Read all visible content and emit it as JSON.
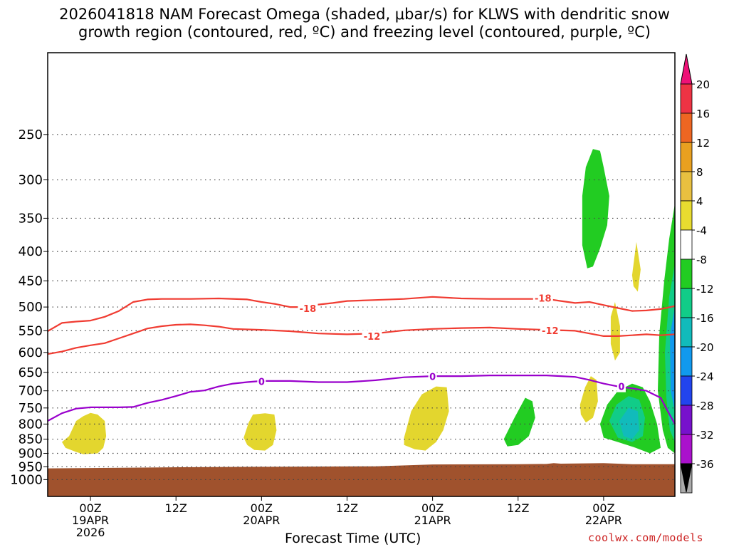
{
  "title_line1": "2026041818 NAM Forecast Omega (shaded, μbar/s) for KLWS with dendritic snow",
  "title_line2": "growth region (contoured, red, ºC) and freezing level (contoured, purple, ºC)",
  "xlabel": "Forecast Time (UTC)",
  "credit": "coolwx.com/models",
  "chart_data": {
    "type": "time-height",
    "x_range_hours": [
      -6,
      82
    ],
    "y_scale": "log-pressure",
    "y_range_hPa": [
      180,
      1070
    ],
    "y_ticks": [
      250,
      300,
      350,
      400,
      450,
      500,
      550,
      600,
      650,
      700,
      750,
      800,
      850,
      900,
      950,
      1000
    ],
    "y_tick_labels": [
      "250",
      "300",
      "350",
      "400",
      "450",
      "500",
      "550",
      "600",
      "650",
      "700",
      "750",
      "800",
      "850",
      "900",
      "950",
      "1000"
    ],
    "grid": true,
    "x_ticks": [
      {
        "h": 0,
        "lines": [
          "00Z",
          "19APR",
          "2026"
        ]
      },
      {
        "h": 12,
        "lines": [
          "12Z"
        ]
      },
      {
        "h": 24,
        "lines": [
          "00Z",
          "20APR"
        ]
      },
      {
        "h": 36,
        "lines": [
          "12Z"
        ]
      },
      {
        "h": 48,
        "lines": [
          "00Z",
          "21APR"
        ]
      },
      {
        "h": 60,
        "lines": [
          "12Z"
        ]
      },
      {
        "h": 72,
        "lines": [
          "00Z",
          "22APR"
        ]
      }
    ],
    "colors": {
      "snow_growth": "#f03c32",
      "freezing": "#9900cc",
      "ground": "#a0522d",
      "grid": "#444444"
    },
    "colorbar": {
      "labels": [
        "20",
        "16",
        "12",
        "8",
        "4",
        "-4",
        "-8",
        "-12",
        "-16",
        "-20",
        "-24",
        "-28",
        "-32",
        "-36"
      ],
      "segments": [
        "#ee3344",
        "#ee6622",
        "#e8a020",
        "#e8c040",
        "#e8dc30",
        "#ffffff",
        "#22cc22",
        "#11cc88",
        "#11bbbb",
        "#1199ee",
        "#2244ee",
        "#7711cc",
        "#aa11cc",
        "#aaaaaa"
      ],
      "top_triangle": "#ee1177",
      "bottom_triangle": "#000000"
    },
    "contours": [
      {
        "label": "-18",
        "color": "#f03c32",
        "label_at": [
          [
            30.5,
            503
          ],
          [
            63.5,
            482
          ]
        ],
        "points": [
          [
            -6,
            551
          ],
          [
            -4,
            533
          ],
          [
            -2,
            530
          ],
          [
            0,
            528
          ],
          [
            2,
            520
          ],
          [
            4,
            508
          ],
          [
            6,
            490
          ],
          [
            8,
            485
          ],
          [
            10,
            484
          ],
          [
            14,
            484
          ],
          [
            18,
            483
          ],
          [
            22,
            485
          ],
          [
            24,
            490
          ],
          [
            26,
            494
          ],
          [
            28,
            500
          ],
          [
            30,
            500
          ],
          [
            32,
            495
          ],
          [
            34,
            492
          ],
          [
            36,
            488
          ],
          [
            40,
            486
          ],
          [
            44,
            484
          ],
          [
            48,
            480
          ],
          [
            52,
            483
          ],
          [
            56,
            484
          ],
          [
            60,
            484
          ],
          [
            64,
            484
          ],
          [
            66,
            488
          ],
          [
            68,
            492
          ],
          [
            70,
            490
          ],
          [
            72,
            496
          ],
          [
            74,
            502
          ],
          [
            76,
            508
          ],
          [
            78,
            507
          ],
          [
            80,
            504
          ],
          [
            82,
            498
          ]
        ]
      },
      {
        "label": "-12",
        "color": "#f03c32",
        "label_at": [
          [
            39.5,
            562
          ],
          [
            64.5,
            549
          ]
        ],
        "points": [
          [
            -6,
            604
          ],
          [
            -4,
            598
          ],
          [
            -2,
            589
          ],
          [
            0,
            583
          ],
          [
            2,
            578
          ],
          [
            4,
            567
          ],
          [
            6,
            556
          ],
          [
            8,
            545
          ],
          [
            10,
            540
          ],
          [
            12,
            537
          ],
          [
            14,
            536
          ],
          [
            16,
            538
          ],
          [
            18,
            541
          ],
          [
            20,
            546
          ],
          [
            24,
            548
          ],
          [
            28,
            551
          ],
          [
            32,
            556
          ],
          [
            36,
            558
          ],
          [
            40,
            556
          ],
          [
            44,
            549
          ],
          [
            48,
            546
          ],
          [
            52,
            544
          ],
          [
            56,
            543
          ],
          [
            60,
            546
          ],
          [
            64,
            548
          ],
          [
            68,
            550
          ],
          [
            70,
            556
          ],
          [
            72,
            562
          ],
          [
            74,
            562
          ],
          [
            76,
            560
          ],
          [
            78,
            558
          ],
          [
            80,
            560
          ],
          [
            82,
            558
          ]
        ]
      },
      {
        "label": "0",
        "color": "#9900cc",
        "label_at": [
          [
            24,
            674
          ],
          [
            48,
            661
          ],
          [
            74.5,
            688
          ]
        ],
        "points": [
          [
            -6,
            790
          ],
          [
            -4,
            766
          ],
          [
            -2,
            752
          ],
          [
            0,
            748
          ],
          [
            4,
            748
          ],
          [
            6,
            747
          ],
          [
            8,
            735
          ],
          [
            10,
            726
          ],
          [
            12,
            715
          ],
          [
            14,
            703
          ],
          [
            16,
            699
          ],
          [
            18,
            688
          ],
          [
            20,
            680
          ],
          [
            22,
            676
          ],
          [
            24,
            673
          ],
          [
            28,
            673
          ],
          [
            32,
            676
          ],
          [
            36,
            676
          ],
          [
            40,
            671
          ],
          [
            44,
            663
          ],
          [
            48,
            660
          ],
          [
            52,
            660
          ],
          [
            56,
            658
          ],
          [
            60,
            658
          ],
          [
            64,
            658
          ],
          [
            66,
            660
          ],
          [
            68,
            662
          ],
          [
            70,
            670
          ],
          [
            72,
            680
          ],
          [
            74,
            688
          ],
          [
            76,
            693
          ],
          [
            78,
            700
          ],
          [
            80,
            720
          ],
          [
            81,
            760
          ],
          [
            82,
            800
          ]
        ]
      }
    ],
    "omega_regions": [
      {
        "name": "yellow-blob-19apr",
        "value": 6,
        "color": "#e3d62e",
        "points": [
          [
            -3,
            840
          ],
          [
            -2,
            790
          ],
          [
            -1,
            775
          ],
          [
            0,
            765
          ],
          [
            1,
            770
          ],
          [
            2,
            790
          ],
          [
            2.2,
            840
          ],
          [
            1.8,
            880
          ],
          [
            1,
            900
          ],
          [
            -1,
            903
          ],
          [
            -2,
            895
          ],
          [
            -3.5,
            880
          ],
          [
            -4,
            860
          ]
        ]
      },
      {
        "name": "yellow-blob-20apr",
        "value": 6,
        "color": "#e3d62e",
        "points": [
          [
            21.5,
            845
          ],
          [
            22.2,
            795
          ],
          [
            22.8,
            770
          ],
          [
            24.5,
            766
          ],
          [
            25.8,
            770
          ],
          [
            26.1,
            820
          ],
          [
            25.6,
            870
          ],
          [
            24.5,
            890
          ],
          [
            23,
            888
          ],
          [
            22,
            870
          ]
        ]
      },
      {
        "name": "yellow-blob-21apr",
        "value": 6,
        "color": "#e3d62e",
        "points": [
          [
            44,
            845
          ],
          [
            45,
            760
          ],
          [
            46.5,
            710
          ],
          [
            48.5,
            688
          ],
          [
            50,
            690
          ],
          [
            50.3,
            760
          ],
          [
            49.5,
            820
          ],
          [
            48.5,
            860
          ],
          [
            47,
            890
          ],
          [
            45.5,
            885
          ],
          [
            44,
            870
          ]
        ]
      },
      {
        "name": "green-upper",
        "value": -6,
        "color": "#22cc22",
        "points": [
          [
            69,
            320
          ],
          [
            69.5,
            285
          ],
          [
            70.5,
            265
          ],
          [
            71.5,
            267
          ],
          [
            72,
            285
          ],
          [
            72.8,
            320
          ],
          [
            72.5,
            360
          ],
          [
            71.5,
            395
          ],
          [
            70.5,
            425
          ],
          [
            69.7,
            428
          ],
          [
            69,
            390
          ]
        ]
      },
      {
        "name": "green-lower-a",
        "value": -6,
        "color": "#22cc22",
        "points": [
          [
            58,
            850
          ],
          [
            59.5,
            780
          ],
          [
            61,
            720
          ],
          [
            62,
            730
          ],
          [
            62.4,
            780
          ],
          [
            61.5,
            840
          ],
          [
            60,
            870
          ],
          [
            58.5,
            875
          ]
        ]
      },
      {
        "name": "yellow-small-a",
        "value": 6,
        "color": "#e3d62e",
        "points": [
          [
            68.7,
            740
          ],
          [
            69.4,
            690
          ],
          [
            70.2,
            660
          ],
          [
            71,
            670
          ],
          [
            71.2,
            730
          ],
          [
            70.5,
            780
          ],
          [
            69.5,
            795
          ],
          [
            68.8,
            770
          ]
        ]
      },
      {
        "name": "yellow-small-b",
        "value": 6,
        "color": "#e3d62e",
        "points": [
          [
            73,
            520
          ],
          [
            73.6,
            490
          ],
          [
            74.3,
            540
          ],
          [
            74.3,
            600
          ],
          [
            73.6,
            620
          ],
          [
            73,
            580
          ]
        ]
      },
      {
        "name": "yellow-small-c",
        "value": 6,
        "color": "#e3d62e",
        "points": [
          [
            76,
            440
          ],
          [
            76.6,
            385
          ],
          [
            77.2,
            430
          ],
          [
            76.8,
            470
          ],
          [
            76.2,
            460
          ]
        ]
      },
      {
        "name": "green-lower-b",
        "value": -6,
        "color": "#22cc22",
        "points": [
          [
            71.5,
            800
          ],
          [
            72.5,
            740
          ],
          [
            74,
            700
          ],
          [
            76,
            680
          ],
          [
            77.5,
            690
          ],
          [
            78.5,
            730
          ],
          [
            79.5,
            800
          ],
          [
            80,
            880
          ],
          [
            78.5,
            900
          ],
          [
            76.5,
            880
          ],
          [
            74,
            860
          ],
          [
            72,
            845
          ]
        ]
      },
      {
        "name": "teal-lower",
        "value": -10,
        "color": "#11cc88",
        "points": [
          [
            72.8,
            790
          ],
          [
            73.8,
            740
          ],
          [
            75.5,
            715
          ],
          [
            77,
            725
          ],
          [
            77.8,
            780
          ],
          [
            77.5,
            840
          ],
          [
            76,
            860
          ],
          [
            74,
            845
          ]
        ]
      },
      {
        "name": "cyan-lower",
        "value": -14,
        "color": "#11bbbb",
        "points": [
          [
            74.2,
            790
          ],
          [
            75.5,
            750
          ],
          [
            76.8,
            760
          ],
          [
            77,
            820
          ],
          [
            76,
            850
          ],
          [
            74.8,
            840
          ]
        ]
      },
      {
        "name": "green-right-column",
        "value": -6,
        "color": "#22cc22",
        "points": [
          [
            79.8,
            560
          ],
          [
            80.5,
            450
          ],
          [
            81.2,
            380
          ],
          [
            82,
            330
          ],
          [
            82,
            900
          ],
          [
            81,
            880
          ],
          [
            80.3,
            820
          ],
          [
            79.6,
            700
          ]
        ]
      },
      {
        "name": "teal-right-column",
        "value": -10,
        "color": "#11cc88",
        "points": [
          [
            80.6,
            600
          ],
          [
            81.2,
            480
          ],
          [
            82,
            420
          ],
          [
            82,
            860
          ],
          [
            81.3,
            820
          ],
          [
            80.8,
            720
          ]
        ]
      },
      {
        "name": "blue-right-column",
        "value": -18,
        "color": "#1199ee",
        "points": [
          [
            81.3,
            560
          ],
          [
            82,
            500
          ],
          [
            82,
            760
          ],
          [
            81.4,
            700
          ]
        ]
      }
    ],
    "ground": {
      "color": "#a0522d",
      "top_points": [
        [
          -6,
          956
        ],
        [
          10,
          952
        ],
        [
          24,
          950
        ],
        [
          40,
          948
        ],
        [
          48,
          941
        ],
        [
          60,
          940
        ],
        [
          64,
          939
        ],
        [
          65,
          936
        ],
        [
          66,
          938
        ],
        [
          72,
          936
        ],
        [
          76,
          940
        ],
        [
          82,
          940
        ]
      ]
    }
  }
}
